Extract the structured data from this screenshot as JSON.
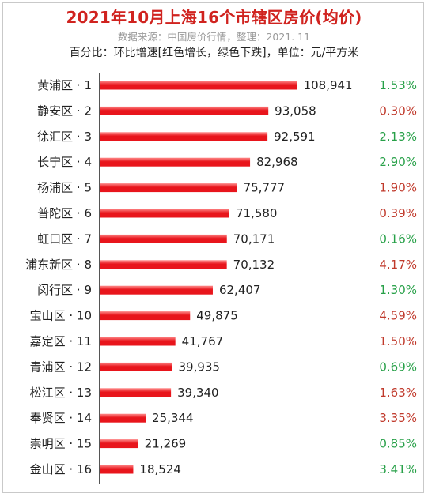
{
  "header": {
    "title": "2021年10月上海16个市辖区房价(均价)",
    "source": "数据来源：中国房价行情，整理：2021. 11",
    "note": "百分比：环比增速[红色增长，绿色下跌]，单位：元/平方米"
  },
  "colors": {
    "bar": "#e8151c",
    "bar_highlight": "#ff8a8a",
    "increase": "#c0392b",
    "decrease": "#27a048",
    "title": "#d0231f"
  },
  "chart_data": {
    "type": "bar",
    "orientation": "horizontal",
    "title": "2021年10月上海16个市辖区房价(均价)",
    "xlabel": "",
    "ylabel": "",
    "xlim": [
      0,
      110000
    ],
    "grid": false,
    "categories": [
      "黄浦区 · 1",
      "静安区 · 2",
      "徐汇区 · 3",
      "长宁区 · 4",
      "杨浦区 · 5",
      "普陀区 · 6",
      "虹口区 · 7",
      "浦东新区 · 8",
      "闵行区 · 9",
      "宝山区 · 10",
      "嘉定区 · 11",
      "青浦区 · 12",
      "松江区 · 13",
      "奉贤区 · 14",
      "崇明区 · 15",
      "金山区 · 16"
    ],
    "values": [
      108941,
      93058,
      92591,
      82968,
      75777,
      71580,
      70171,
      70132,
      62407,
      49875,
      41767,
      39935,
      39340,
      25344,
      21269,
      18524
    ],
    "value_labels": [
      "108,941",
      "93,058",
      "92,591",
      "82,968",
      "75,777",
      "71,580",
      "70,171",
      "70,132",
      "62,407",
      "49,875",
      "41,767",
      "39,935",
      "39,340",
      "25,344",
      "21,269",
      "18,524"
    ],
    "pct_labels": [
      "1.53%",
      "0.30%",
      "2.13%",
      "2.90%",
      "1.90%",
      "0.39%",
      "0.16%",
      "4.17%",
      "1.30%",
      "4.59%",
      "1.50%",
      "0.69%",
      "1.63%",
      "3.35%",
      "0.85%",
      "3.41%"
    ],
    "pct_direction": [
      "down",
      "up",
      "down",
      "down",
      "up",
      "up",
      "down",
      "up",
      "down",
      "up",
      "up",
      "down",
      "up",
      "up",
      "down",
      "down"
    ]
  }
}
